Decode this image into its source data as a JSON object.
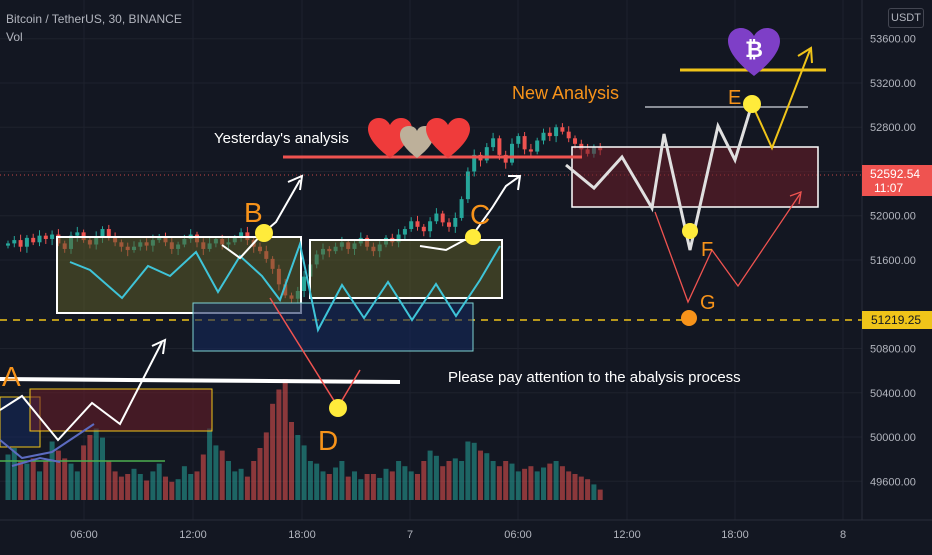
{
  "header": {
    "symbol": "Bitcoin / TetherUS, 30, BINANCE",
    "indicator": "Vol",
    "currency": "USDT"
  },
  "colors": {
    "background": "#131722",
    "up": "#26a69a",
    "down": "#ef5350",
    "axis_text": "#b2b5be",
    "annotation_orange": "#f7931a",
    "marker_yellow": "#ffeb3b",
    "price_badge": "#ef5350",
    "level_badge": "#f0c419"
  },
  "annotations": {
    "yesterday": "Yesterday's analysis",
    "new_analysis": "New Analysis",
    "attention": "Please pay attention to the abalysis process",
    "points": [
      "A",
      "B",
      "C",
      "D",
      "E",
      "F",
      "G"
    ],
    "icons": [
      "heart-icon",
      "bitcoin-heart-icon"
    ]
  },
  "chart_data": {
    "type": "candlestick",
    "symbol": "BTCUSDT",
    "interval": "30",
    "xlabel": "",
    "ylabel": "",
    "ylim": [
      49250,
      53950
    ],
    "grid": true,
    "x_ticks": [
      "06:00",
      "12:00",
      "18:00",
      "7",
      "06:00",
      "12:00",
      "18:00",
      "8"
    ],
    "y_ticks": [
      "49600.00",
      "50000.00",
      "50400.00",
      "50800.00",
      "51600.00",
      "52000.00",
      "52400.00",
      "52800.00",
      "53200.00",
      "53600.00"
    ],
    "last_price": "52592.54",
    "countdown": "11:07",
    "marked_level": "51219.25",
    "price_path": [
      51750,
      51780,
      51720,
      51800,
      51760,
      51820,
      51790,
      51830,
      51750,
      51700,
      51820,
      51850,
      51780,
      51740,
      51810,
      51880,
      51800,
      51760,
      51720,
      51690,
      51720,
      51760,
      51730,
      51780,
      51810,
      51760,
      51700,
      51740,
      51790,
      51830,
      51760,
      51700,
      51750,
      51790,
      51740,
      51760,
      51800,
      51850,
      51780,
      51720,
      51680,
      51610,
      51520,
      51380,
      51280,
      51250,
      51320,
      51450,
      51560,
      51650,
      51700,
      51680,
      51720,
      51760,
      51700,
      51750,
      51800,
      51720,
      51680,
      51740,
      51800,
      51760,
      51830,
      51880,
      51950,
      51900,
      51860,
      51950,
      52020,
      51940,
      51900,
      51980,
      52150,
      52400,
      52550,
      52500,
      52620,
      52700,
      52550,
      52480,
      52650,
      52720,
      52600,
      52580,
      52680,
      52750,
      52720,
      52800,
      52760,
      52700,
      52650,
      52600,
      52560,
      52620,
      52592.54
    ],
    "volume_relative": [
      0.35,
      0.4,
      0.3,
      0.28,
      0.32,
      0.22,
      0.3,
      0.45,
      0.38,
      0.32,
      0.28,
      0.22,
      0.42,
      0.5,
      0.55,
      0.48,
      0.3,
      0.22,
      0.18,
      0.2,
      0.24,
      0.2,
      0.15,
      0.22,
      0.28,
      0.18,
      0.14,
      0.16,
      0.26,
      0.2,
      0.22,
      0.35,
      0.55,
      0.42,
      0.38,
      0.3,
      0.22,
      0.24,
      0.18,
      0.3,
      0.4,
      0.52,
      0.74,
      0.85,
      0.93,
      0.6,
      0.5,
      0.42,
      0.3,
      0.28,
      0.22,
      0.2,
      0.25,
      0.3,
      0.18,
      0.22,
      0.16,
      0.2,
      0.2,
      0.17,
      0.24,
      0.22,
      0.3,
      0.26,
      0.22,
      0.2,
      0.3,
      0.38,
      0.34,
      0.26,
      0.3,
      0.32,
      0.3,
      0.45,
      0.44,
      0.38,
      0.36,
      0.3,
      0.26,
      0.3,
      0.28,
      0.22,
      0.24,
      0.26,
      0.22,
      0.25,
      0.28,
      0.3,
      0.26,
      0.22,
      0.2,
      0.18,
      0.16,
      0.12,
      0.08
    ],
    "points": [
      {
        "label": "A",
        "price": 50650
      },
      {
        "label": "B",
        "price": 52040
      },
      {
        "label": "C",
        "price": 52000
      },
      {
        "label": "D",
        "price": 50380
      },
      {
        "label": "E",
        "price": 53300
      },
      {
        "label": "F",
        "price": 52060
      },
      {
        "label": "G",
        "price": 51219.25
      }
    ]
  }
}
